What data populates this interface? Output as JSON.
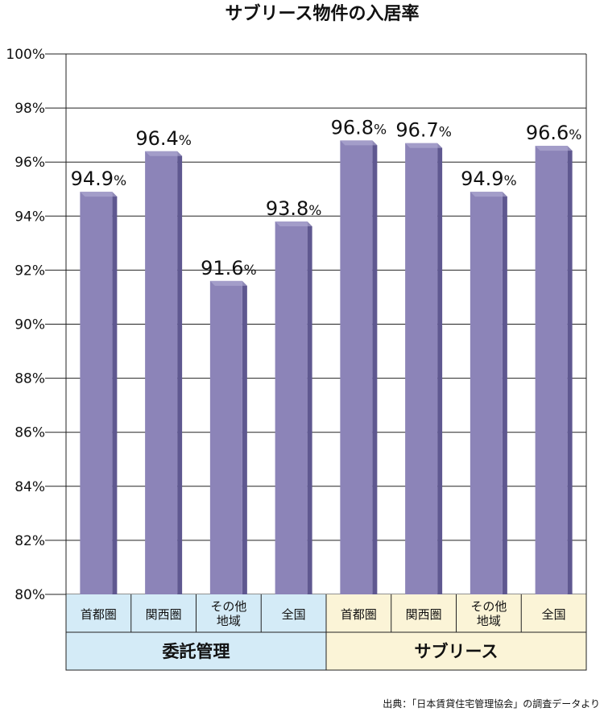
{
  "chart_data": {
    "type": "bar",
    "title": "サブリース物件の入居率",
    "ylim": [
      80,
      100
    ],
    "ytick_step": 2,
    "ytick_suffix": "%",
    "value_suffix": "%",
    "grid": true,
    "bar_color": "#8c84b8",
    "bar_side_color": "#5f5890",
    "bar_top_color": "#b3aed4",
    "categories": [
      [
        "首都圏"
      ],
      [
        "関西圏"
      ],
      [
        "その他",
        "地域"
      ],
      [
        "全国"
      ],
      [
        "首都圏"
      ],
      [
        "関西圏"
      ],
      [
        "その他",
        "地域"
      ],
      [
        "全国"
      ]
    ],
    "values": [
      94.9,
      96.4,
      91.6,
      93.8,
      96.8,
      96.7,
      94.9,
      96.6
    ],
    "groups": [
      {
        "label": "委託管理",
        "span": 4,
        "color": "#d4ebf7"
      },
      {
        "label": "サブリース",
        "span": 4,
        "color": "#fbf4d7"
      }
    ],
    "source": "出典：「日本賃貸住宅管理協会」の調査データより"
  }
}
